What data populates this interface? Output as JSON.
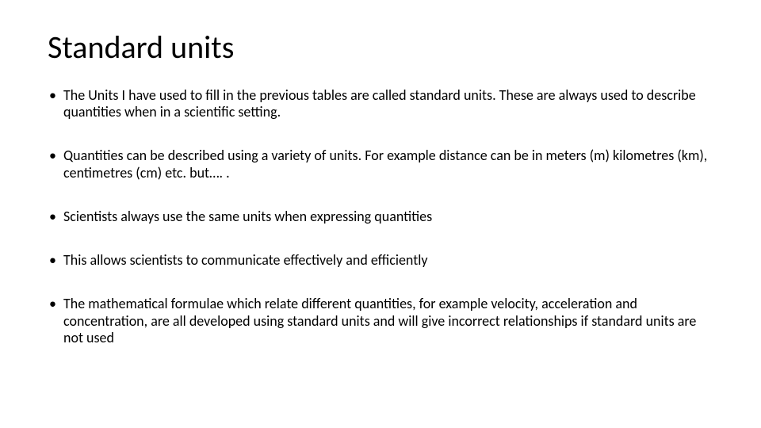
{
  "slide": {
    "title": "Standard units",
    "title_fontsize": 40,
    "title_color": "#000000",
    "body_fontsize": 18,
    "body_color": "#000000",
    "background_color": "#ffffff",
    "bullets": [
      "The Units I have used to fill in the previous tables are called standard units. These are always used to describe quantities when in a scientific setting.",
      "Quantities can be described using a variety of units. For example distance can be in meters (m) kilometres (km), centimetres (cm) etc. but…. .",
      "Scientists always use the same units when expressing quantities",
      "This allows scientists to communicate effectively and efficiently",
      "The mathematical formulae which relate different quantities, for example velocity, acceleration and concentration, are all developed using standard units and will give incorrect relationships if standard units are not used"
    ]
  }
}
